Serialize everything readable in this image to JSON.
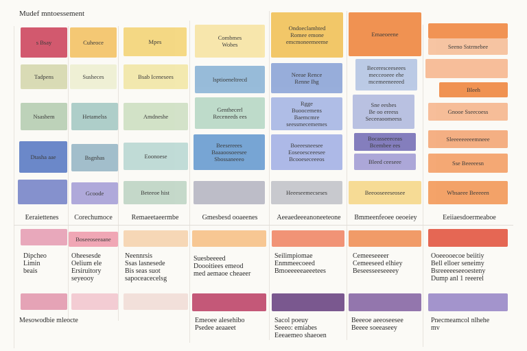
{
  "title": "Mudef mntoessement",
  "colors": {
    "red": "#cf4c63",
    "rose": "#e6a1b5",
    "amber": "#f2c35d",
    "yellow": "#f6d98d",
    "sage": "#b8cfb4",
    "teal": "#9fc6bf",
    "blue": "#5f7fc6",
    "sky": "#a6c3d6",
    "lavender": "#a9a3d8",
    "purple": "#6b4b86",
    "orange": "#f08a45",
    "peach": "#f6b891"
  },
  "row1": [
    {
      "text": "s Bsay",
      "color": "#cf4c63"
    },
    {
      "text": "Cuheoce",
      "color": "#f4c46a"
    },
    {
      "text": "Mpes",
      "color": "#f4d67b"
    },
    {
      "text": "Combmes\nWobes",
      "color": "#f7e5a6"
    },
    {
      "text": "Ondoeclamhted\nRomee emone\nemcmoneemeeme",
      "color": "#f2c35d"
    },
    {
      "text": "",
      "color": "#f08a45"
    },
    {
      "text": "Emaeoeene",
      "color": "#f08a45"
    }
  ],
  "col7_row1b": "Seeno Sstrmebee",
  "row2": [
    {
      "text": "Tadpens",
      "color": "#d7d9b0"
    },
    {
      "text": "Susheces",
      "color": "#eef0d3"
    },
    {
      "text": "Bsab Icenesees",
      "color": "#f2e7a8"
    },
    {
      "text": "lsptioeneltrecd",
      "color": "#8fb6d7"
    },
    {
      "text": "Neeae Rence\nRenne Ihg",
      "color": "#8fa7d8"
    },
    {
      "text": "Beceresceeseees\nmecceoeee ehe\nmcemeeneeeed",
      "color": "#b6c7e4"
    },
    {
      "text": "",
      "color": "#f6b891"
    }
  ],
  "col7_row2b": "Bleeh",
  "row3": [
    {
      "text": "Nsashem",
      "color": "#b8cfb4"
    },
    {
      "text": "Hetamelss",
      "color": "#a8cbc6"
    },
    {
      "text": "Amdneshe",
      "color": "#cfe0c4"
    },
    {
      "text": "Genthecerl\nReceneeds ees",
      "color": "#b9d9c7"
    },
    {
      "text": "Rgge\nBuoocemens\nBaemcmre\nseessmecememes",
      "color": "#a9b8e5"
    },
    {
      "text": "Sne eesbes\nBe oo ereess\nSeceeaoomeess",
      "color": "#b4bde0"
    },
    {
      "text": "Gnooe Sseecoess",
      "color": "#f6b891"
    }
  ],
  "col7_row3b": "Sleeeeeeeeemneee",
  "row4": [
    {
      "text": "Dtasha aae",
      "color": "#5f7fc6"
    },
    {
      "text": "Bsgnhas",
      "color": "#9bb9c8"
    },
    {
      "text": "Eoonoese",
      "color": "#bcd9d4"
    },
    {
      "text": "Beesereees\nBaaaoosoeesee\nSbossaneeeo",
      "color": "#6c9ed2"
    },
    {
      "text": "Boeeesneesee\nEoseoesceeesee\nBcooeseceeeos",
      "color": "#a7b4e6"
    },
    {
      "text": "Bocasseeeceas\nBcembee ees",
      "color": "#7a74b9"
    },
    {
      "text": "Sse Beeeeesn",
      "color": "#f4a26a"
    }
  ],
  "col6_row4b": "Bleed ceeseee",
  "row5": [
    {
      "text": "",
      "color": "#7b88c9"
    },
    {
      "text": "Gcoode",
      "color": "#a9a3d8"
    },
    {
      "text": "Beteeoe hist",
      "color": "#c0d6c6"
    },
    {
      "text": "",
      "color": "#b7b7c3"
    },
    {
      "text": "Heeeseemecseses",
      "color": "#c4c5cb"
    },
    {
      "text": "Beeooseeeseosee",
      "color": "#f6d98d"
    },
    {
      "text": "Wbsaeee Beeeeen",
      "color": "#f39b5c"
    }
  ],
  "labels": [
    "Eeraiettenes",
    "Corechumoce",
    "Remaeetaeermbe",
    "Gmesbesd ooaeenes",
    "Aeeaedeeeanoneeteone",
    "Bmmeenfeoee oeoeiey",
    "Eeiiaesdoermeaboe"
  ],
  "row6": [
    {
      "text": "",
      "color": "#e6a1b5"
    },
    {
      "text": "Boseeoseeaane",
      "color": "#f0a1b0"
    },
    {
      "text": "",
      "color": "#f5d4b0"
    },
    {
      "text": "",
      "color": "#f6c28a"
    },
    {
      "text": "",
      "color": "#f08a6a"
    },
    {
      "text": "",
      "color": "#f0935b"
    },
    {
      "text": "",
      "color": "#e35a45"
    }
  ],
  "body": [
    "Dipcheo\nLimin\nbeais",
    "Oheesesde\nOelium ele\nErsiruitory\nseyeooy",
    "Neennrsis\nSsas lasnesede\nBis seas suot\nsapoceacecelsg",
    "Suesbeeeed\nDoooitiees emeod\nmed aemaoe cheaeer",
    "Seilimpiomae\nEnmmeecoeed\nBmoeeeeeaeeetees",
    "Cemeeseeeer\nCemeeseed elhiey\nBeseesseeseeeey",
    "Ooeeooecoe beiitiy\nBell elloer seneimy\nBsreeeeeseeoesteny\nDump anl 1 reeerel"
  ],
  "row7": [
    {
      "color": "#e39bb0"
    },
    {
      "color": "#f2c8cf"
    },
    {
      "color": "#f1ddd7"
    },
    {
      "color": "#bf4a6d"
    },
    {
      "color": "#6f4a86"
    },
    {
      "color": "#8a6aa6"
    },
    {
      "color": "#9b8bc8"
    }
  ],
  "footer": [
    "Mesowodbie mleocte",
    "",
    "",
    "Emeoee alesehibo\nPsedee aeaaeet",
    "Sacol poeuy\nSeeeo: emiabes\nEeeaemeo shaeoen",
    "Beeeoe aeeoseesee\nBeeee soeeaseey",
    "Pnecmeamcol nlhehe\nmv"
  ]
}
